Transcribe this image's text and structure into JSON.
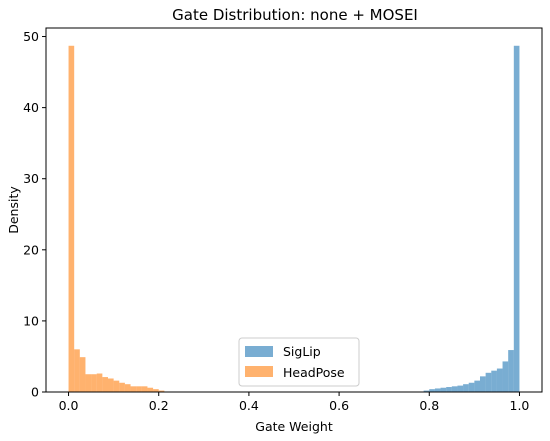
{
  "chart_data": {
    "type": "bar",
    "title": "Gate Distribution: none + MOSEI",
    "xlabel": "Gate Weight",
    "ylabel": "Density",
    "xlim": [
      -0.05,
      1.05
    ],
    "ylim": [
      0,
      51.2
    ],
    "xticks": [
      "0.0",
      "0.2",
      "0.4",
      "0.6",
      "0.8",
      "1.0"
    ],
    "yticks": [
      "0",
      "10",
      "20",
      "30",
      "40",
      "50"
    ],
    "bin_width": 0.0125,
    "legend_position": "lower-center",
    "series": [
      {
        "name": "SigLip",
        "color": "#1f77b4",
        "x": [
          0.7875,
          0.8,
          0.8125,
          0.825,
          0.8375,
          0.85,
          0.8625,
          0.875,
          0.8875,
          0.9,
          0.9125,
          0.925,
          0.9375,
          0.95,
          0.9625,
          0.975,
          0.9875
        ],
        "values": [
          0.2,
          0.4,
          0.5,
          0.6,
          0.7,
          0.8,
          0.9,
          1.1,
          1.3,
          1.6,
          2.2,
          2.7,
          3.0,
          3.3,
          4.3,
          5.9,
          48.7
        ]
      },
      {
        "name": "HeadPose",
        "color": "#ff7f0e",
        "x": [
          0.0,
          0.0125,
          0.025,
          0.0375,
          0.05,
          0.0625,
          0.075,
          0.0875,
          0.1,
          0.1125,
          0.125,
          0.1375,
          0.15,
          0.1625,
          0.175,
          0.1875,
          0.2
        ],
        "values": [
          48.7,
          6.0,
          4.9,
          2.5,
          2.5,
          2.6,
          2.1,
          1.9,
          1.6,
          1.3,
          1.1,
          0.8,
          0.8,
          0.8,
          0.6,
          0.4,
          0.2
        ]
      }
    ]
  }
}
